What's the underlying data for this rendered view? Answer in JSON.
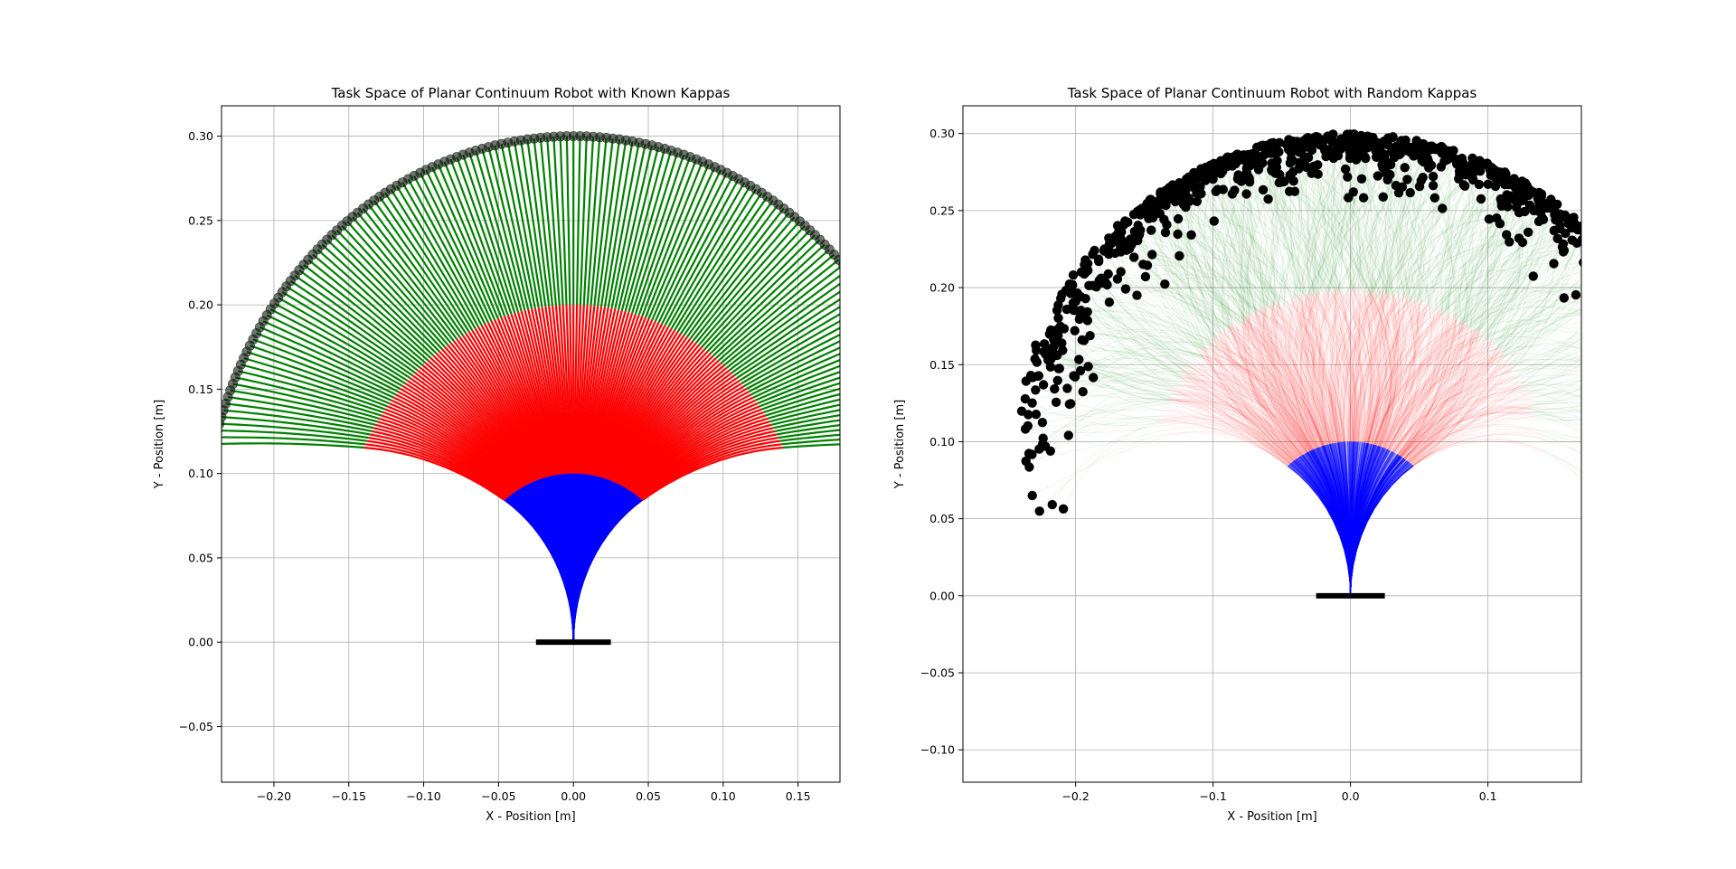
{
  "chart_data": [
    {
      "type": "scatter",
      "title": "Task Space of Planar Continuum Robot with Known Kappas",
      "xlabel": "X - Position [m]",
      "ylabel": "Y - Position [m]",
      "xlim": [
        -0.235,
        0.178
      ],
      "ylim": [
        -0.083,
        0.318
      ],
      "xticks": [
        -0.2,
        -0.15,
        -0.1,
        -0.05,
        0.0,
        0.05,
        0.1,
        0.15
      ],
      "xtick_labels": [
        "−0.20",
        "−0.15",
        "−0.10",
        "−0.05",
        "0.00",
        "0.05",
        "0.10",
        "0.15"
      ],
      "yticks": [
        -0.05,
        0.0,
        0.05,
        0.1,
        0.15,
        0.2,
        0.25,
        0.3
      ],
      "ytick_labels": [
        "−0.05",
        "0.00",
        "0.05",
        "0.10",
        "0.15",
        "0.20",
        "0.25",
        "0.30"
      ],
      "grid": true,
      "mode": "known",
      "segment_length": 0.1,
      "kappa_range": [
        -10,
        10
      ],
      "segments": [
        {
          "name": "segment 1",
          "color": "#0000ff"
        },
        {
          "name": "segment 2",
          "color": "#ff0000"
        },
        {
          "name": "segment 3",
          "color": "#008000"
        }
      ],
      "endpoint_color": "#000000",
      "base": {
        "x": [
          -0.025,
          0.025
        ],
        "y": 0.0,
        "color": "#000000"
      }
    },
    {
      "type": "scatter",
      "title": "Task Space of Planar Continuum Robot with Random Kappas",
      "xlabel": "X - Position [m]",
      "ylabel": "Y - Position [m]",
      "xlim": [
        -0.282,
        0.168
      ],
      "ylim": [
        -0.121,
        0.318
      ],
      "xticks": [
        -0.2,
        -0.1,
        0.0,
        0.1
      ],
      "xtick_labels": [
        "−0.2",
        "−0.1",
        "0.0",
        "0.1"
      ],
      "yticks": [
        -0.1,
        -0.05,
        0.0,
        0.05,
        0.1,
        0.15,
        0.2,
        0.25,
        0.3
      ],
      "ytick_labels": [
        "−0.10",
        "−0.05",
        "0.00",
        "0.05",
        "0.10",
        "0.15",
        "0.20",
        "0.25",
        "0.30"
      ],
      "grid": true,
      "mode": "random",
      "segment_length": 0.1,
      "kappa_range": [
        -10,
        10
      ],
      "segments": [
        {
          "name": "segment 1",
          "color": "#0000ff"
        },
        {
          "name": "segment 2",
          "color": "#ff0000"
        },
        {
          "name": "segment 3",
          "color": "#008000"
        }
      ],
      "endpoint_color": "#000000",
      "base": {
        "x": [
          -0.025,
          0.025
        ],
        "y": 0.0,
        "color": "#000000"
      }
    }
  ]
}
